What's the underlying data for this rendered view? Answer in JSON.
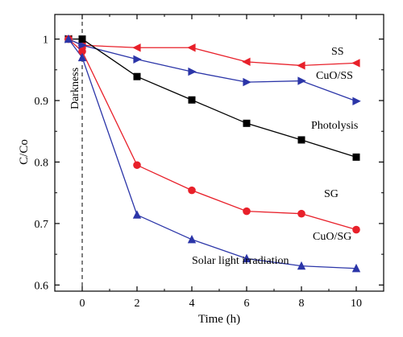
{
  "chart_data": {
    "type": "line",
    "xlabel": "Time (h)",
    "ylabel": "C/Co",
    "xlim": [
      -1,
      11
    ],
    "ylim": [
      0.59,
      1.04
    ],
    "x_ticks": [
      0,
      2,
      4,
      6,
      8,
      10
    ],
    "y_ticks": [
      0.6,
      0.7,
      0.8,
      0.9,
      1
    ],
    "x_tick_labels": [
      "0",
      "2",
      "4",
      "6",
      "8",
      "10"
    ],
    "y_tick_labels": [
      "0.6",
      "0.7",
      "0.8",
      "0.9",
      "1"
    ],
    "grid": false,
    "legend": "none (series labeled inline)",
    "darkness_line_x": 0,
    "annotations": {
      "darkness": "Darkness",
      "solar": "Solar light irradiation"
    },
    "series": [
      {
        "name": "SS",
        "color": "#e8202a",
        "marker": "triangle-left",
        "x": [
          -0.5,
          0,
          2,
          4,
          6,
          8,
          10
        ],
        "y": [
          1.0,
          0.99,
          0.986,
          0.986,
          0.963,
          0.957,
          0.961
        ]
      },
      {
        "name": "CuO/SS",
        "color": "#2b35a8",
        "marker": "triangle-right",
        "x": [
          -0.5,
          0,
          2,
          4,
          6,
          8,
          10
        ],
        "y": [
          1.0,
          0.99,
          0.967,
          0.947,
          0.93,
          0.932,
          0.899
        ]
      },
      {
        "name": "Photolysis",
        "color": "#000000",
        "marker": "square",
        "x": [
          -0.5,
          0,
          2,
          4,
          6,
          8,
          10
        ],
        "y": [
          1.0,
          1.0,
          0.939,
          0.901,
          0.863,
          0.836,
          0.808
        ]
      },
      {
        "name": "SG",
        "color": "#e8202a",
        "marker": "circle",
        "x": [
          -0.5,
          0,
          2,
          4,
          6,
          8,
          10
        ],
        "y": [
          1.0,
          0.98,
          0.795,
          0.754,
          0.72,
          0.716,
          0.69
        ]
      },
      {
        "name": "CuO/SG",
        "color": "#2b35a8",
        "marker": "triangle-up",
        "x": [
          -0.5,
          0,
          2,
          4,
          6,
          8,
          10
        ],
        "y": [
          1.0,
          0.97,
          0.714,
          0.674,
          0.643,
          0.631,
          0.627
        ]
      }
    ]
  }
}
